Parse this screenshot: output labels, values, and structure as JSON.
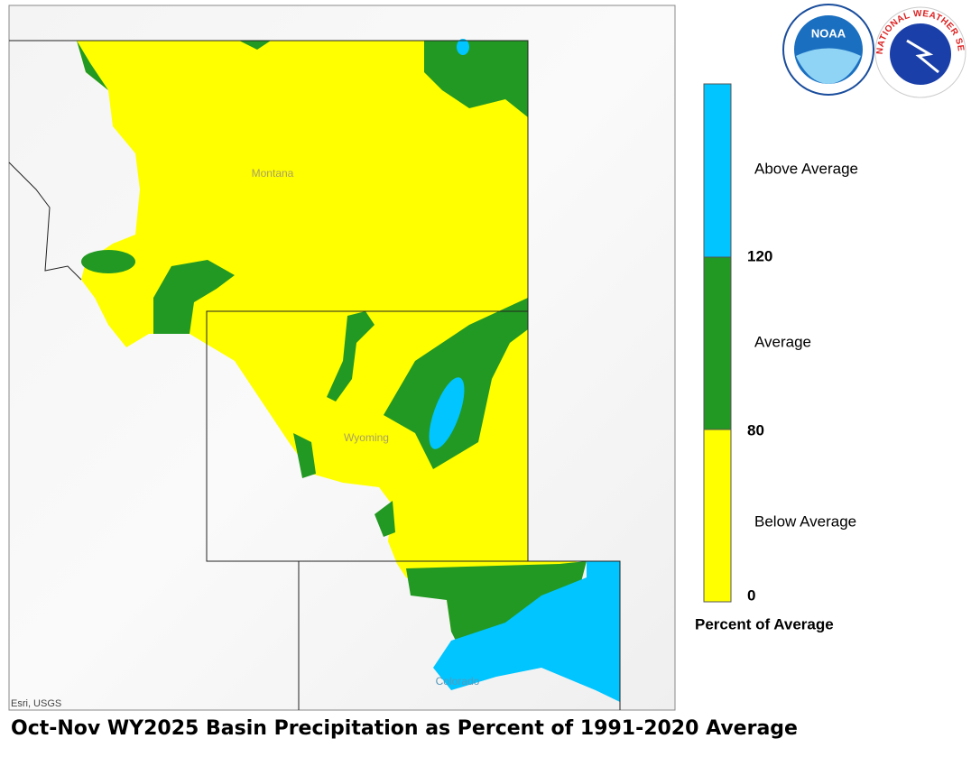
{
  "map": {
    "title": "Oct-Nov WY2025 Basin Precipitation as Percent of 1991-2020 Average",
    "attribution": "Esri, USGS",
    "states": [
      "Montana",
      "Wyoming",
      "Colorado"
    ]
  },
  "legend": {
    "title": "Percent of Average",
    "classes": [
      "Above Average",
      "Average",
      "Below Average"
    ],
    "breaks": [
      120,
      80,
      0
    ]
  },
  "logos": {
    "noaa": "NOAA",
    "nws": "NATIONAL WEATHER SERVICE"
  }
}
